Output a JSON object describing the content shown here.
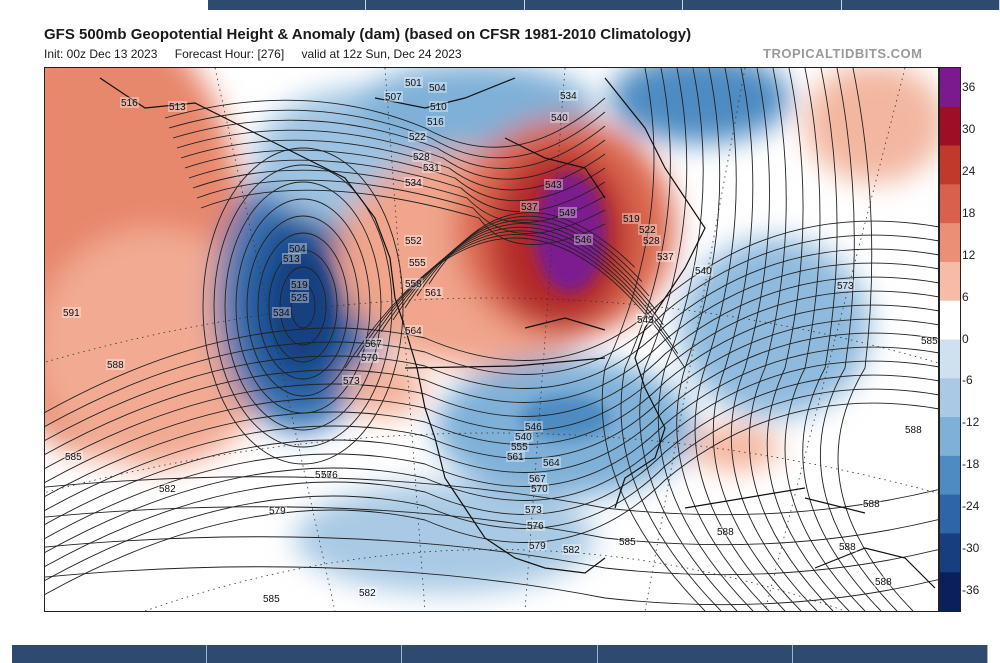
{
  "header": {
    "title": "GFS 500mb Geopotential Height & Anomaly (dam) (based on CFSR 1981-2010 Climatology)",
    "init": "Init: 00z Dec 13 2023",
    "forecast_hour": "Forecast Hour: [276]",
    "valid": "valid at 12z Sun, Dec 24 2023",
    "credit": "TROPICALTIDBITS.COM"
  },
  "colorbar": {
    "labels": [
      "36",
      "30",
      "24",
      "18",
      "12",
      "6",
      "0",
      "-6",
      "-12",
      "-18",
      "-24",
      "-30",
      "-36"
    ],
    "colors": [
      "#7b1a8f",
      "#9e0f26",
      "#c0392b",
      "#d9604d",
      "#eb8f76",
      "#f6bca8",
      "#ffffff",
      "#cfe0ef",
      "#a9c9e4",
      "#7fb0d8",
      "#4e8bc2",
      "#2d65a8",
      "#173f80",
      "#0b1f5c"
    ]
  },
  "map": {
    "contour_labels": [
      "501",
      "504",
      "507",
      "510",
      "513",
      "516",
      "519",
      "522",
      "525",
      "528",
      "531",
      "534",
      "537",
      "540",
      "543",
      "546",
      "549",
      "552",
      "555",
      "558",
      "561",
      "564",
      "567",
      "570",
      "573",
      "576",
      "579",
      "582",
      "585",
      "588",
      "591"
    ],
    "labels_placed": [
      {
        "text": "516"
      },
      {
        "text": "513"
      },
      {
        "text": "501"
      },
      {
        "text": "504"
      },
      {
        "text": "507"
      },
      {
        "text": "510"
      },
      {
        "text": "516"
      },
      {
        "text": "522"
      },
      {
        "text": "528"
      },
      {
        "text": "531"
      },
      {
        "text": "534"
      },
      {
        "text": "540"
      },
      {
        "text": "543"
      },
      {
        "text": "549"
      },
      {
        "text": "546"
      },
      {
        "text": "537"
      },
      {
        "text": "534"
      },
      {
        "text": "519"
      },
      {
        "text": "522"
      },
      {
        "text": "528"
      },
      {
        "text": "537"
      },
      {
        "text": "540"
      },
      {
        "text": "543"
      },
      {
        "text": "552"
      },
      {
        "text": "555"
      },
      {
        "text": "558"
      },
      {
        "text": "561"
      },
      {
        "text": "564"
      },
      {
        "text": "567"
      },
      {
        "text": "570"
      },
      {
        "text": "573"
      },
      {
        "text": "576"
      },
      {
        "text": "573"
      },
      {
        "text": "585"
      },
      {
        "text": "591"
      },
      {
        "text": "588"
      },
      {
        "text": "504"
      },
      {
        "text": "513"
      },
      {
        "text": "519"
      },
      {
        "text": "525"
      },
      {
        "text": "534"
      },
      {
        "text": "540"
      },
      {
        "text": "546"
      },
      {
        "text": "555"
      },
      {
        "text": "561"
      },
      {
        "text": "564"
      },
      {
        "text": "567"
      },
      {
        "text": "570"
      },
      {
        "text": "573"
      },
      {
        "text": "576"
      },
      {
        "text": "579"
      },
      {
        "text": "582"
      },
      {
        "text": "585"
      },
      {
        "text": "588"
      },
      {
        "text": "585"
      },
      {
        "text": "582"
      },
      {
        "text": "579"
      },
      {
        "text": "576"
      },
      {
        "text": "585"
      },
      {
        "text": "582"
      },
      {
        "text": "588"
      },
      {
        "text": "588"
      },
      {
        "text": "588"
      },
      {
        "text": "588"
      }
    ]
  }
}
